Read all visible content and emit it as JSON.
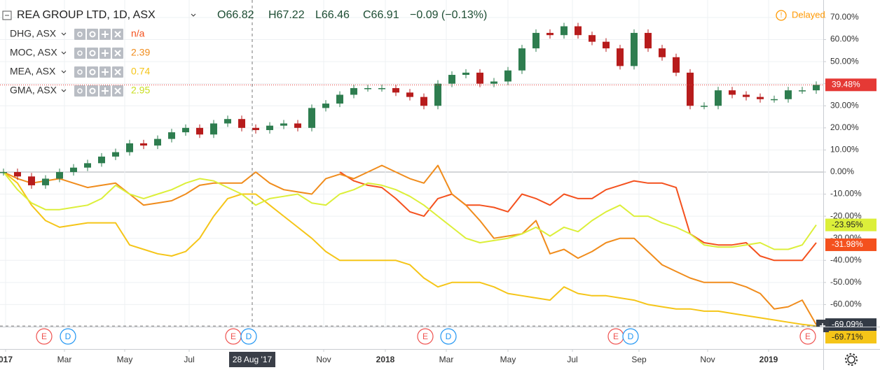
{
  "chart_data": {
    "type": "line",
    "title": "REA GROUP LTD, 1D, ASX",
    "ohlc": [
      "O66.82",
      "H67.22",
      "L66.46",
      "C66.91",
      "−0.09 (−0.13%)"
    ],
    "status": "Delayed",
    "xlim": [
      -0.25,
      58.5
    ],
    "ylim": [
      -70,
      77.9
    ],
    "yticks": [
      {
        "value": 70,
        "label": "70.00%"
      },
      {
        "value": 60,
        "label": "60.00%"
      },
      {
        "value": 50,
        "label": "50.00%"
      },
      {
        "value": 40,
        "label": "40.00%"
      },
      {
        "value": 30,
        "label": "30.00%"
      },
      {
        "value": 20,
        "label": "20.00%"
      },
      {
        "value": 10,
        "label": "10.00%"
      },
      {
        "value": 0,
        "label": "0.00%"
      },
      {
        "value": -10,
        "label": "-10.00%"
      },
      {
        "value": -20,
        "label": "-20.00%"
      },
      {
        "value": -30,
        "label": "-30.00%"
      },
      {
        "value": -40,
        "label": "-40.00%"
      },
      {
        "value": -50,
        "label": "-50.00%"
      },
      {
        "value": -60,
        "label": "-60.00%"
      }
    ],
    "xticks": [
      {
        "value": 0.15,
        "label": "017"
      },
      {
        "value": 4.35,
        "label": "Mar"
      },
      {
        "value": 8.65,
        "label": "May"
      },
      {
        "value": 13.25,
        "label": "Jul"
      },
      {
        "value": 22.85,
        "label": "Nov"
      },
      {
        "value": 27.25,
        "label": "2018"
      },
      {
        "value": 31.6,
        "label": "Mar"
      },
      {
        "value": 36,
        "label": "May"
      },
      {
        "value": 40.6,
        "label": "Jul"
      },
      {
        "value": 45.35,
        "label": "Sep"
      },
      {
        "value": 50.25,
        "label": "Nov"
      },
      {
        "value": 54.6,
        "label": "2019"
      }
    ],
    "crosshair": {
      "value": 17.75,
      "label": "28 Aug '17"
    },
    "grid": true,
    "events": [
      {
        "label": "E",
        "x": 2.9
      },
      {
        "label": "D",
        "x": 4.6
      },
      {
        "label": "E",
        "x": 16.4
      },
      {
        "label": "D",
        "x": 17.5
      },
      {
        "label": "E",
        "x": 30.1
      },
      {
        "label": "D",
        "x": 31.75
      },
      {
        "label": "E",
        "x": 43.7
      },
      {
        "label": "D",
        "x": 44.75
      },
      {
        "label": "E",
        "x": 57.4
      }
    ],
    "series": [
      {
        "name": "REA",
        "style": "candles",
        "up_color": "#2e7d4f",
        "down_color": "#b71c1c",
        "label_color": "#e53935",
        "last_label": "39.48%",
        "values": [
          0,
          -2,
          -6,
          -3,
          0,
          2,
          4,
          7,
          9,
          13,
          12,
          15,
          18,
          20,
          17,
          22,
          24,
          20,
          19,
          21,
          22,
          20,
          29,
          31,
          35,
          38,
          38,
          38,
          36,
          34,
          30,
          40,
          44,
          45,
          40,
          41,
          46,
          56,
          63,
          62,
          66,
          62,
          59,
          56,
          48,
          63,
          56,
          52,
          45,
          30,
          30,
          37,
          35,
          34,
          33,
          33,
          37,
          37,
          39.48
        ]
      },
      {
        "name": "DHG, ASX",
        "legend_value": "n/a",
        "color": "#f4511e",
        "label_color": "#f4511e",
        "last_label": "-31.98%",
        "values": [
          null,
          null,
          null,
          null,
          null,
          null,
          null,
          null,
          null,
          null,
          null,
          null,
          null,
          null,
          null,
          null,
          null,
          null,
          null,
          null,
          null,
          null,
          null,
          null,
          0,
          -4,
          -6,
          -7,
          -12,
          -18,
          -20,
          -12,
          -10,
          -15,
          -15,
          -16,
          -18,
          -10,
          -12,
          -15,
          -10,
          -12,
          -12,
          -8,
          -6,
          -4,
          -5,
          -5,
          -7,
          -28,
          -32,
          -33,
          -33,
          -32,
          -38,
          -40,
          -40,
          -40,
          -31.98
        ]
      },
      {
        "name": "MOC, ASX",
        "legend_value": "2.39",
        "color": "#f08c1c",
        "label_color": "#333a45",
        "last_label": "-69.09%",
        "values": [
          0,
          -3,
          -5,
          -4,
          -3,
          -5,
          -7,
          -6,
          -5,
          -10,
          -15,
          -14,
          -13,
          -10,
          -6,
          -5,
          -5,
          -5,
          0,
          -5,
          -8,
          -9,
          -10,
          -3,
          -1,
          -3,
          0,
          3,
          0,
          -3,
          -5,
          3,
          -10,
          -15,
          -22,
          -30,
          -29,
          -28,
          -22,
          -37,
          -35,
          -39,
          -36,
          -32,
          -30,
          -30,
          -36,
          -42,
          -45,
          -48,
          -50,
          -50,
          -50,
          -52,
          -55,
          -62,
          -61,
          -58,
          -69.09
        ]
      },
      {
        "name": "MEA, ASX",
        "legend_value": "0.74",
        "color": "#f5c518",
        "label_color": "#f5c518",
        "last_label": "-69.71%",
        "values": [
          0,
          -5,
          -15,
          -22,
          -25,
          -24,
          -23,
          -23,
          -23,
          -33,
          -35,
          -37,
          -38,
          -36,
          -30,
          -20,
          -12,
          -10,
          -10,
          -15,
          -20,
          -25,
          -30,
          -36,
          -40,
          -40,
          -40,
          -40,
          -40,
          -42,
          -48,
          -52,
          -50,
          -50,
          -50,
          -52,
          -55,
          -56,
          -57,
          -58,
          -52,
          -55,
          -56,
          -56,
          -57,
          -58,
          -60,
          -61,
          -62,
          -62,
          -63,
          -63,
          -64,
          -65,
          -66,
          -67,
          -68,
          -69,
          -69.71
        ]
      },
      {
        "name": "GMA, ASX",
        "legend_value": "2.95",
        "color": "#dcef3a",
        "label_color": "#dcef3a",
        "last_label": "-23.95%",
        "values": [
          0,
          -8,
          -14,
          -17,
          -17,
          -16,
          -15,
          -12,
          -6,
          -10,
          -12,
          -10,
          -8,
          -5,
          -3,
          -4,
          -7,
          -10,
          -15,
          -12,
          -11,
          -10,
          -14,
          -15,
          -10,
          -8,
          -5,
          -6,
          -8,
          -11,
          -15,
          -20,
          -25,
          -30,
          -32,
          -31,
          -30,
          -28,
          -25,
          -29,
          -25,
          -27,
          -22,
          -18,
          -15,
          -20,
          -20,
          -23,
          -25,
          -28,
          -33,
          -34,
          -34,
          -33,
          -32,
          -35,
          -35,
          -33,
          -23.95
        ]
      }
    ]
  }
}
